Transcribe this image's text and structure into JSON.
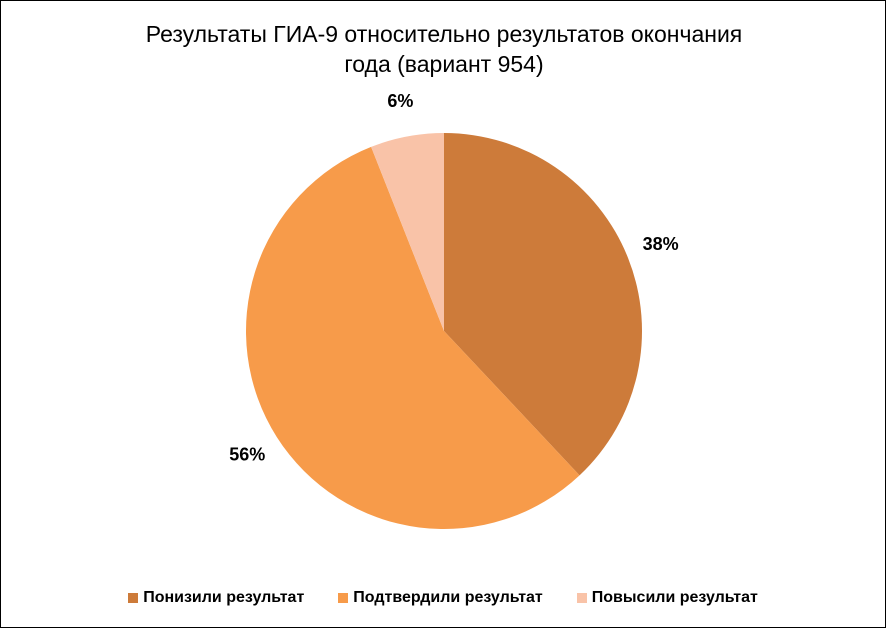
{
  "chart_data": {
    "type": "pie",
    "title": "Результаты ГИА-9 относительно результатов окончания года (вариант 954)",
    "categories": [
      "Понизили результат",
      "Подтвердили результат",
      "Повысили результат"
    ],
    "values": [
      38,
      56,
      6
    ],
    "value_labels": [
      "38%",
      "56%",
      "6%"
    ],
    "colors": [
      "#cd7b3a",
      "#f79b4a",
      "#f9c3a8"
    ],
    "legend": "bottom"
  }
}
